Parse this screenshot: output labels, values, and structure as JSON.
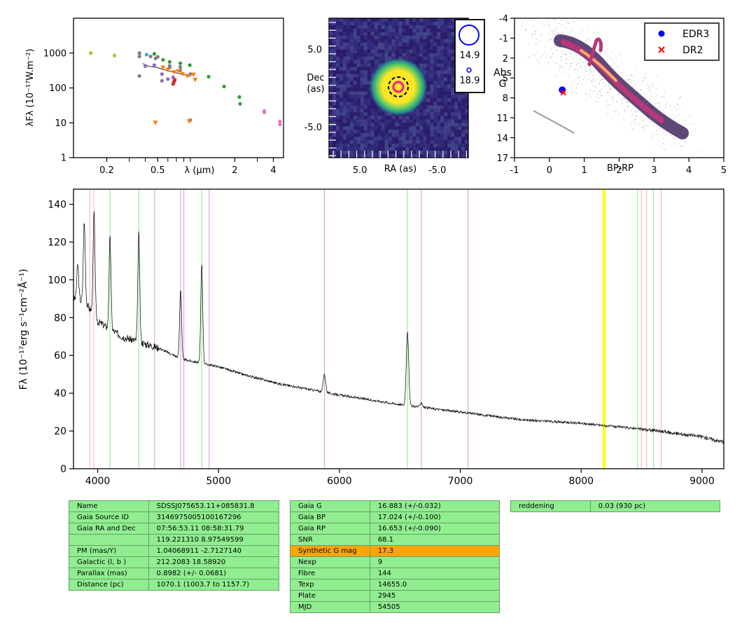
{
  "colors": {
    "flux_line": "#000000",
    "emission_pink": "#ffb6c1",
    "emission_green": "#90ee90",
    "emission_violet": "#dda0dd",
    "emission_yellow": "#ffff00",
    "table_cell": "#90ee90",
    "table_highlight": "#ffa500",
    "edr3_marker": "#0000ff",
    "dr2_marker": "#ff0000"
  },
  "chart_data": [
    {
      "id": "sed",
      "type": "scatter",
      "xlabel": "λ (μm)",
      "ylabel": "λFλ (10⁻¹⁷W.m⁻²)",
      "x_scale": "log",
      "y_scale": "log",
      "xlim": [
        0.11,
        4.8
      ],
      "ylim": [
        1,
        10000
      ],
      "x_ticks": [
        0.2,
        0.5,
        2,
        4
      ],
      "x_tick_labels": [
        "0.2",
        "0.5",
        "2",
        "4"
      ],
      "y_ticks": [
        1,
        10,
        100,
        1000
      ],
      "y_tick_labels": [
        "1",
        "10",
        "100",
        "1000"
      ],
      "series": [
        {
          "color": "#bcbd22",
          "marker": "circle",
          "points": [
            [
              0.15,
              1000
            ],
            [
              0.23,
              850
            ]
          ]
        },
        {
          "color": "#17becf",
          "marker": "circle",
          "points": [
            [
              0.41,
              900
            ]
          ]
        },
        {
          "color": "#2ca02c",
          "marker": "circle",
          "points": [
            [
              0.47,
              950
            ],
            [
              0.55,
              640
            ],
            [
              0.62,
              560
            ],
            [
              0.75,
              510
            ],
            [
              0.89,
              450
            ],
            [
              1.25,
              210
            ],
            [
              1.65,
              110
            ],
            [
              2.17,
              55
            ],
            [
              2.2,
              35
            ]
          ]
        },
        {
          "color": "#7f7f7f",
          "marker": "circle",
          "points": [
            [
              0.36,
              1000
            ],
            [
              0.36,
              800
            ],
            [
              0.36,
              220
            ],
            [
              0.44,
              800
            ],
            [
              0.48,
              700
            ],
            [
              0.5,
              780
            ],
            [
              0.62,
              430
            ],
            [
              0.62,
              380
            ],
            [
              0.75,
              400
            ],
            [
              0.75,
              320
            ],
            [
              0.9,
              250
            ],
            [
              0.9,
              12
            ]
          ]
        },
        {
          "color": "#9467bd",
          "marker": "circle",
          "points": [
            [
              0.4,
              420
            ],
            [
              0.47,
              450
            ],
            [
              0.54,
              250
            ],
            [
              0.54,
              160
            ],
            [
              0.6,
              180
            ],
            [
              0.66,
              200
            ]
          ]
        },
        {
          "color": "#ff7f0e",
          "marker": "triangle",
          "points": [
            [
              0.48,
              10
            ],
            [
              0.55,
              380
            ],
            [
              0.6,
              330
            ],
            [
              0.67,
              280
            ],
            [
              0.72,
              300
            ],
            [
              0.78,
              250
            ],
            [
              0.85,
              220
            ],
            [
              0.88,
              11
            ],
            [
              0.95,
              240
            ],
            [
              0.98,
              170
            ]
          ]
        },
        {
          "color": "#d62728",
          "marker": "circle",
          "points": [
            [
              0.66,
              130
            ],
            [
              0.67,
              150
            ],
            [
              0.68,
              170
            ]
          ]
        },
        {
          "color": "#e377c2",
          "marker": "circle",
          "points": [
            [
              3.4,
              20
            ],
            [
              3.4,
              22
            ],
            [
              4.5,
              9
            ],
            [
              4.5,
              11
            ]
          ]
        }
      ],
      "spectrum_trace": [
        [
          0.38,
          500
        ],
        [
          0.4,
          470
        ],
        [
          0.42,
          430
        ],
        [
          0.44,
          410
        ],
        [
          0.46,
          400
        ],
        [
          0.48,
          390
        ],
        [
          0.5,
          380
        ],
        [
          0.55,
          340
        ],
        [
          0.6,
          310
        ],
        [
          0.65,
          290
        ],
        [
          0.7,
          270
        ],
        [
          0.75,
          255
        ],
        [
          0.8,
          240
        ],
        [
          0.85,
          225
        ],
        [
          0.9,
          210
        ]
      ]
    },
    {
      "id": "sky",
      "type": "heatmap",
      "xlabel": "RA (as)",
      "ylabel": "Dec\n(as)",
      "xlim": [
        9,
        -9
      ],
      "ylim": [
        -9,
        9
      ],
      "x_ticks": [
        5.0,
        -5.0
      ],
      "x_tick_labels": [
        "5.0",
        "-5.0"
      ],
      "y_ticks": [
        5.0,
        -5.0
      ],
      "y_tick_labels": [
        "5.0",
        "-5.0"
      ],
      "source": {
        "ra": 0,
        "dec": 0
      },
      "legend": [
        "14.9",
        "18.9"
      ]
    },
    {
      "id": "cmd",
      "type": "scatter",
      "xlabel": "BP-RP",
      "ylabel": "Abs\nG",
      "xlim": [
        -1,
        5
      ],
      "ylim": [
        17,
        -4
      ],
      "x_ticks": [
        -1,
        0,
        1,
        2,
        3,
        4,
        5
      ],
      "x_tick_labels": [
        "-1",
        "0",
        "1",
        "2",
        "3",
        "4",
        "5"
      ],
      "y_ticks": [
        -4,
        -1,
        2,
        5,
        8,
        11,
        14,
        17
      ],
      "y_tick_labels": [
        "-4",
        "-1",
        "2",
        "5",
        "8",
        "11",
        "14",
        "17"
      ],
      "legend_position": "top-right",
      "series": [
        {
          "name": "EDR3",
          "color": "#0000ff",
          "marker": "circle",
          "points": [
            [
              0.37,
              6.8
            ]
          ]
        },
        {
          "name": "DR2",
          "color": "#ff0000",
          "marker": "x",
          "points": [
            [
              0.4,
              7.2
            ]
          ]
        }
      ]
    },
    {
      "id": "spectrum",
      "type": "line",
      "xlabel": "",
      "ylabel": "Fλ (10⁻¹⁷erg s⁻¹cm⁻²Å⁻¹)",
      "xlim": [
        3800,
        9180
      ],
      "ylim": [
        0,
        148
      ],
      "x_ticks": [
        4000,
        5000,
        6000,
        7000,
        8000,
        9000
      ],
      "x_tick_labels": [
        "4000",
        "5000",
        "6000",
        "7000",
        "8000",
        "9000"
      ],
      "y_ticks": [
        0,
        20,
        40,
        60,
        80,
        100,
        120,
        140
      ],
      "y_tick_labels": [
        "0",
        "20",
        "40",
        "60",
        "80",
        "100",
        "120",
        "140"
      ],
      "continuum": [
        [
          3800,
          90
        ],
        [
          3900,
          88
        ],
        [
          4000,
          78
        ],
        [
          4200,
          70
        ],
        [
          4400,
          66
        ],
        [
          4500,
          64
        ],
        [
          4700,
          58
        ],
        [
          5000,
          54
        ],
        [
          5200,
          50
        ],
        [
          5500,
          45
        ],
        [
          6000,
          39
        ],
        [
          6300,
          36
        ],
        [
          6500,
          34
        ],
        [
          7000,
          30
        ],
        [
          7500,
          26
        ],
        [
          8000,
          24
        ],
        [
          8500,
          21
        ],
        [
          9000,
          17
        ],
        [
          9180,
          14
        ]
      ],
      "emission_lines": [
        {
          "wavelength": 3835,
          "flux": 108
        },
        {
          "wavelength": 3889,
          "flux": 130
        },
        {
          "wavelength": 3970,
          "flux": 135
        },
        {
          "wavelength": 4102,
          "flux": 122
        },
        {
          "wavelength": 4340,
          "flux": 124
        },
        {
          "wavelength": 4686,
          "flux": 95
        },
        {
          "wavelength": 4861,
          "flux": 108
        },
        {
          "wavelength": 5876,
          "flux": 50
        },
        {
          "wavelength": 6563,
          "flux": 72
        },
        {
          "wavelength": 6678,
          "flux": 35
        }
      ],
      "reference_lines": [
        {
          "wavelength": 3934,
          "color": "#ffb6c1"
        },
        {
          "wavelength": 3968,
          "color": "#ffb6c1"
        },
        {
          "wavelength": 4102,
          "color": "#90ee90"
        },
        {
          "wavelength": 4340,
          "color": "#90ee90"
        },
        {
          "wavelength": 4471,
          "color": "#dda0dd"
        },
        {
          "wavelength": 4686,
          "color": "#dda0dd"
        },
        {
          "wavelength": 4713,
          "color": "#dda0dd"
        },
        {
          "wavelength": 4861,
          "color": "#90ee90"
        },
        {
          "wavelength": 4922,
          "color": "#dda0dd"
        },
        {
          "wavelength": 5876,
          "color": "#dda0dd"
        },
        {
          "wavelength": 6563,
          "color": "#90ee90"
        },
        {
          "wavelength": 6678,
          "color": "#dda0dd"
        },
        {
          "wavelength": 7065,
          "color": "#dda0dd"
        },
        {
          "wavelength": 8183,
          "color": "#ffff00"
        },
        {
          "wavelength": 8195,
          "color": "#ffff00"
        },
        {
          "wavelength": 8467,
          "color": "#90ee90"
        },
        {
          "wavelength": 8498,
          "color": "#ffb6c1"
        },
        {
          "wavelength": 8542,
          "color": "#ffb6c1"
        },
        {
          "wavelength": 8598,
          "color": "#90ee90"
        },
        {
          "wavelength": 8662,
          "color": "#ffb6c1"
        }
      ]
    }
  ],
  "tables": {
    "identity": [
      [
        "Name",
        "SDSSJ075653.11+085831.8"
      ],
      [
        "Gaia Source ID",
        "3146975005100167296"
      ],
      [
        "Gaia RA and Dec",
        "07:56:53.11    08:58:31.79"
      ],
      [
        "",
        "119.221310    8.97549599"
      ],
      [
        "PM (mas/Y)",
        "1.04068911    -2.7127140"
      ],
      [
        "Galactic (l, b )",
        "212.2083    18.58920"
      ],
      [
        "Parallax (mas)",
        "0.8982 (+/- 0.0681)"
      ],
      [
        "Distance (pc)",
        "1070.1 (1003.7 to 1157.7)"
      ]
    ],
    "photometry": [
      [
        "Gaia G",
        "16.883 (+/-0.032)"
      ],
      [
        "Gaia BP",
        "17.024 (+/-0.100)"
      ],
      [
        "Gaia RP",
        "16.653 (+/-0.090)"
      ],
      [
        "SNR",
        "68.1"
      ],
      [
        "Synthetic G mag",
        "17.3"
      ],
      [
        "Nexp",
        "9"
      ],
      [
        "Fibre",
        "144"
      ],
      [
        "Texp",
        "14655.0"
      ],
      [
        "Plate",
        "2945"
      ],
      [
        "MJD",
        "54505"
      ]
    ],
    "extinction": [
      [
        "reddening",
        "0.03 (930 pc)"
      ]
    ],
    "highlight_row": "Synthetic G mag"
  }
}
